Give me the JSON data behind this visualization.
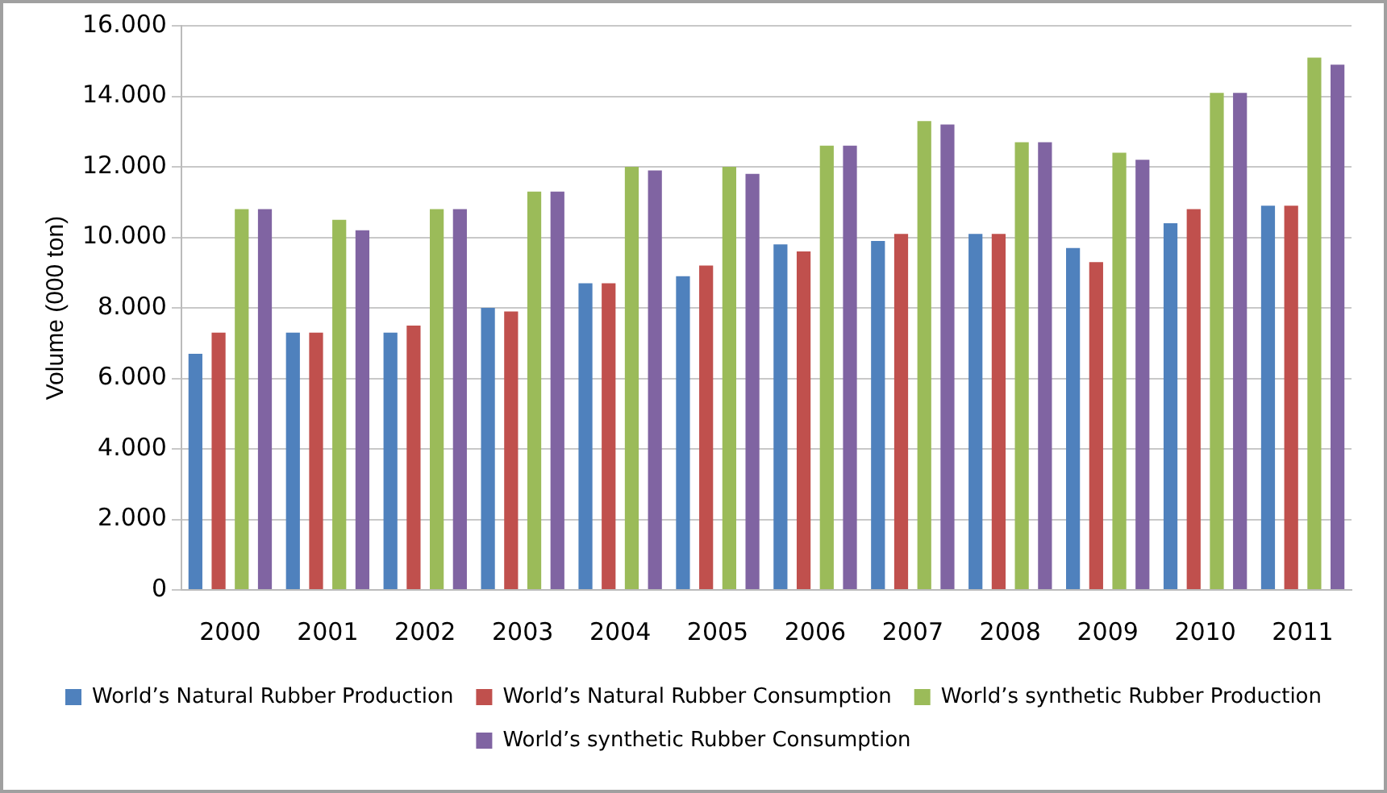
{
  "chart_data": {
    "type": "bar",
    "ylabel": "Volume (000 ton)",
    "categories": [
      "2000",
      "2001",
      "2002",
      "2003",
      "2004",
      "2005",
      "2006",
      "2007",
      "2008",
      "2009",
      "2010",
      "2011"
    ],
    "series": [
      {
        "name": "World’s Natural Rubber Production",
        "color": "#4f81bd",
        "values": [
          6700,
          7300,
          7300,
          8000,
          8700,
          8900,
          9800,
          9900,
          10100,
          9700,
          10400,
          10900
        ]
      },
      {
        "name": "World’s Natural Rubber Consumption",
        "color": "#c0504d",
        "values": [
          7300,
          7300,
          7500,
          7900,
          8700,
          9200,
          9600,
          10100,
          10100,
          9300,
          10800,
          10900
        ]
      },
      {
        "name": "World’s synthetic Rubber Production",
        "color": "#9bbb59",
        "values": [
          10800,
          10500,
          10800,
          11300,
          12000,
          12000,
          12600,
          13300,
          12700,
          12400,
          14100,
          15100
        ]
      },
      {
        "name": "World’s synthetic Rubber Consumption",
        "color": "#8064a2",
        "values": [
          10800,
          10200,
          10800,
          11300,
          11900,
          11800,
          12600,
          13200,
          12700,
          12200,
          14100,
          14900
        ]
      }
    ],
    "ylim": [
      0,
      16000
    ],
    "yticks": [
      0,
      {
        "value": 2000,
        "label": "2.000"
      },
      {
        "value": 4000,
        "label": "4.000"
      },
      {
        "value": 6000,
        "label": "6.000"
      },
      {
        "value": 8000,
        "label": "8.000"
      },
      {
        "value": 10000,
        "label": "10.000"
      },
      {
        "value": 12000,
        "label": "12.000"
      },
      {
        "value": 14000,
        "label": "14.000"
      },
      {
        "value": 16000,
        "label": "16.000"
      }
    ],
    "grid": "y",
    "legend": "bottom"
  }
}
